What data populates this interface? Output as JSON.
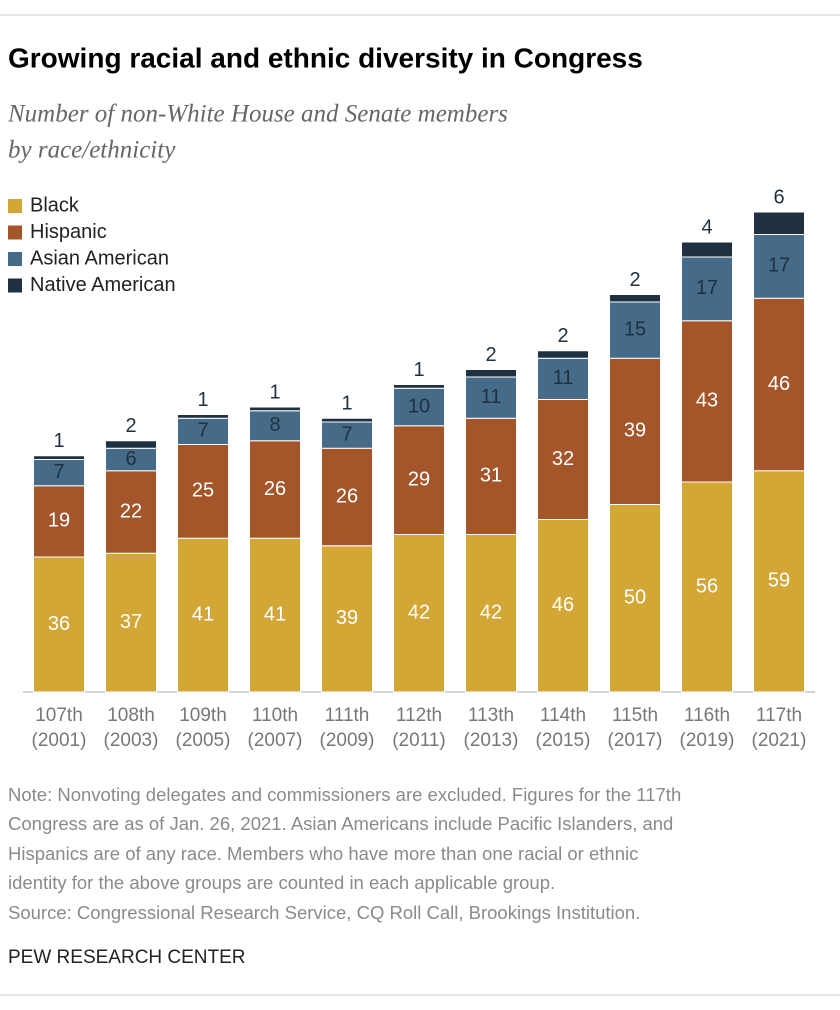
{
  "chart_data": {
    "type": "stacked-bar",
    "title": "Growing racial and ethnic diversity in Congress",
    "subtitle": [
      "Number of non-White House and Senate members",
      "by race/ethnicity"
    ],
    "categories": [
      [
        "107th",
        "(2001)"
      ],
      [
        "108th",
        "(2003)"
      ],
      [
        "109th",
        "(2005)"
      ],
      [
        "110th",
        "(2007)"
      ],
      [
        "111th",
        "(2009)"
      ],
      [
        "112th",
        "(2011)"
      ],
      [
        "113th",
        "(2013)"
      ],
      [
        "114th",
        "(2015)"
      ],
      [
        "115th",
        "(2017)"
      ],
      [
        "116th",
        "(2019)"
      ],
      [
        "117th",
        "(2021)"
      ]
    ],
    "series": [
      {
        "name": "Black",
        "color": "#d2a736",
        "values": [
          36,
          37,
          41,
          41,
          39,
          42,
          42,
          46,
          50,
          56,
          59
        ]
      },
      {
        "name": "Hispanic",
        "color": "#a4552a",
        "values": [
          19,
          22,
          25,
          26,
          26,
          29,
          31,
          32,
          39,
          43,
          46
        ]
      },
      {
        "name": "Asian American",
        "color": "#466b88",
        "values": [
          7,
          6,
          7,
          8,
          7,
          10,
          11,
          11,
          15,
          17,
          17
        ]
      },
      {
        "name": "Native American",
        "color": "#1f3140",
        "values": [
          1,
          2,
          1,
          1,
          1,
          1,
          2,
          2,
          2,
          4,
          6
        ]
      }
    ],
    "legend": "top-left",
    "note": [
      "Note: Nonvoting delegates and commissioners are excluded. Figures for the 117th",
      "Congress are as of Jan. 26, 2021. Asian Americans include Pacific Islanders, and",
      "Hispanics are of any race. Members who have more than one racial or ethnic",
      "identity for the above groups are counted in each applicable group."
    ],
    "source": "Source: Congressional Research Service, CQ Roll Call, Brookings Institution.",
    "credit": "PEW RESEARCH CENTER"
  }
}
